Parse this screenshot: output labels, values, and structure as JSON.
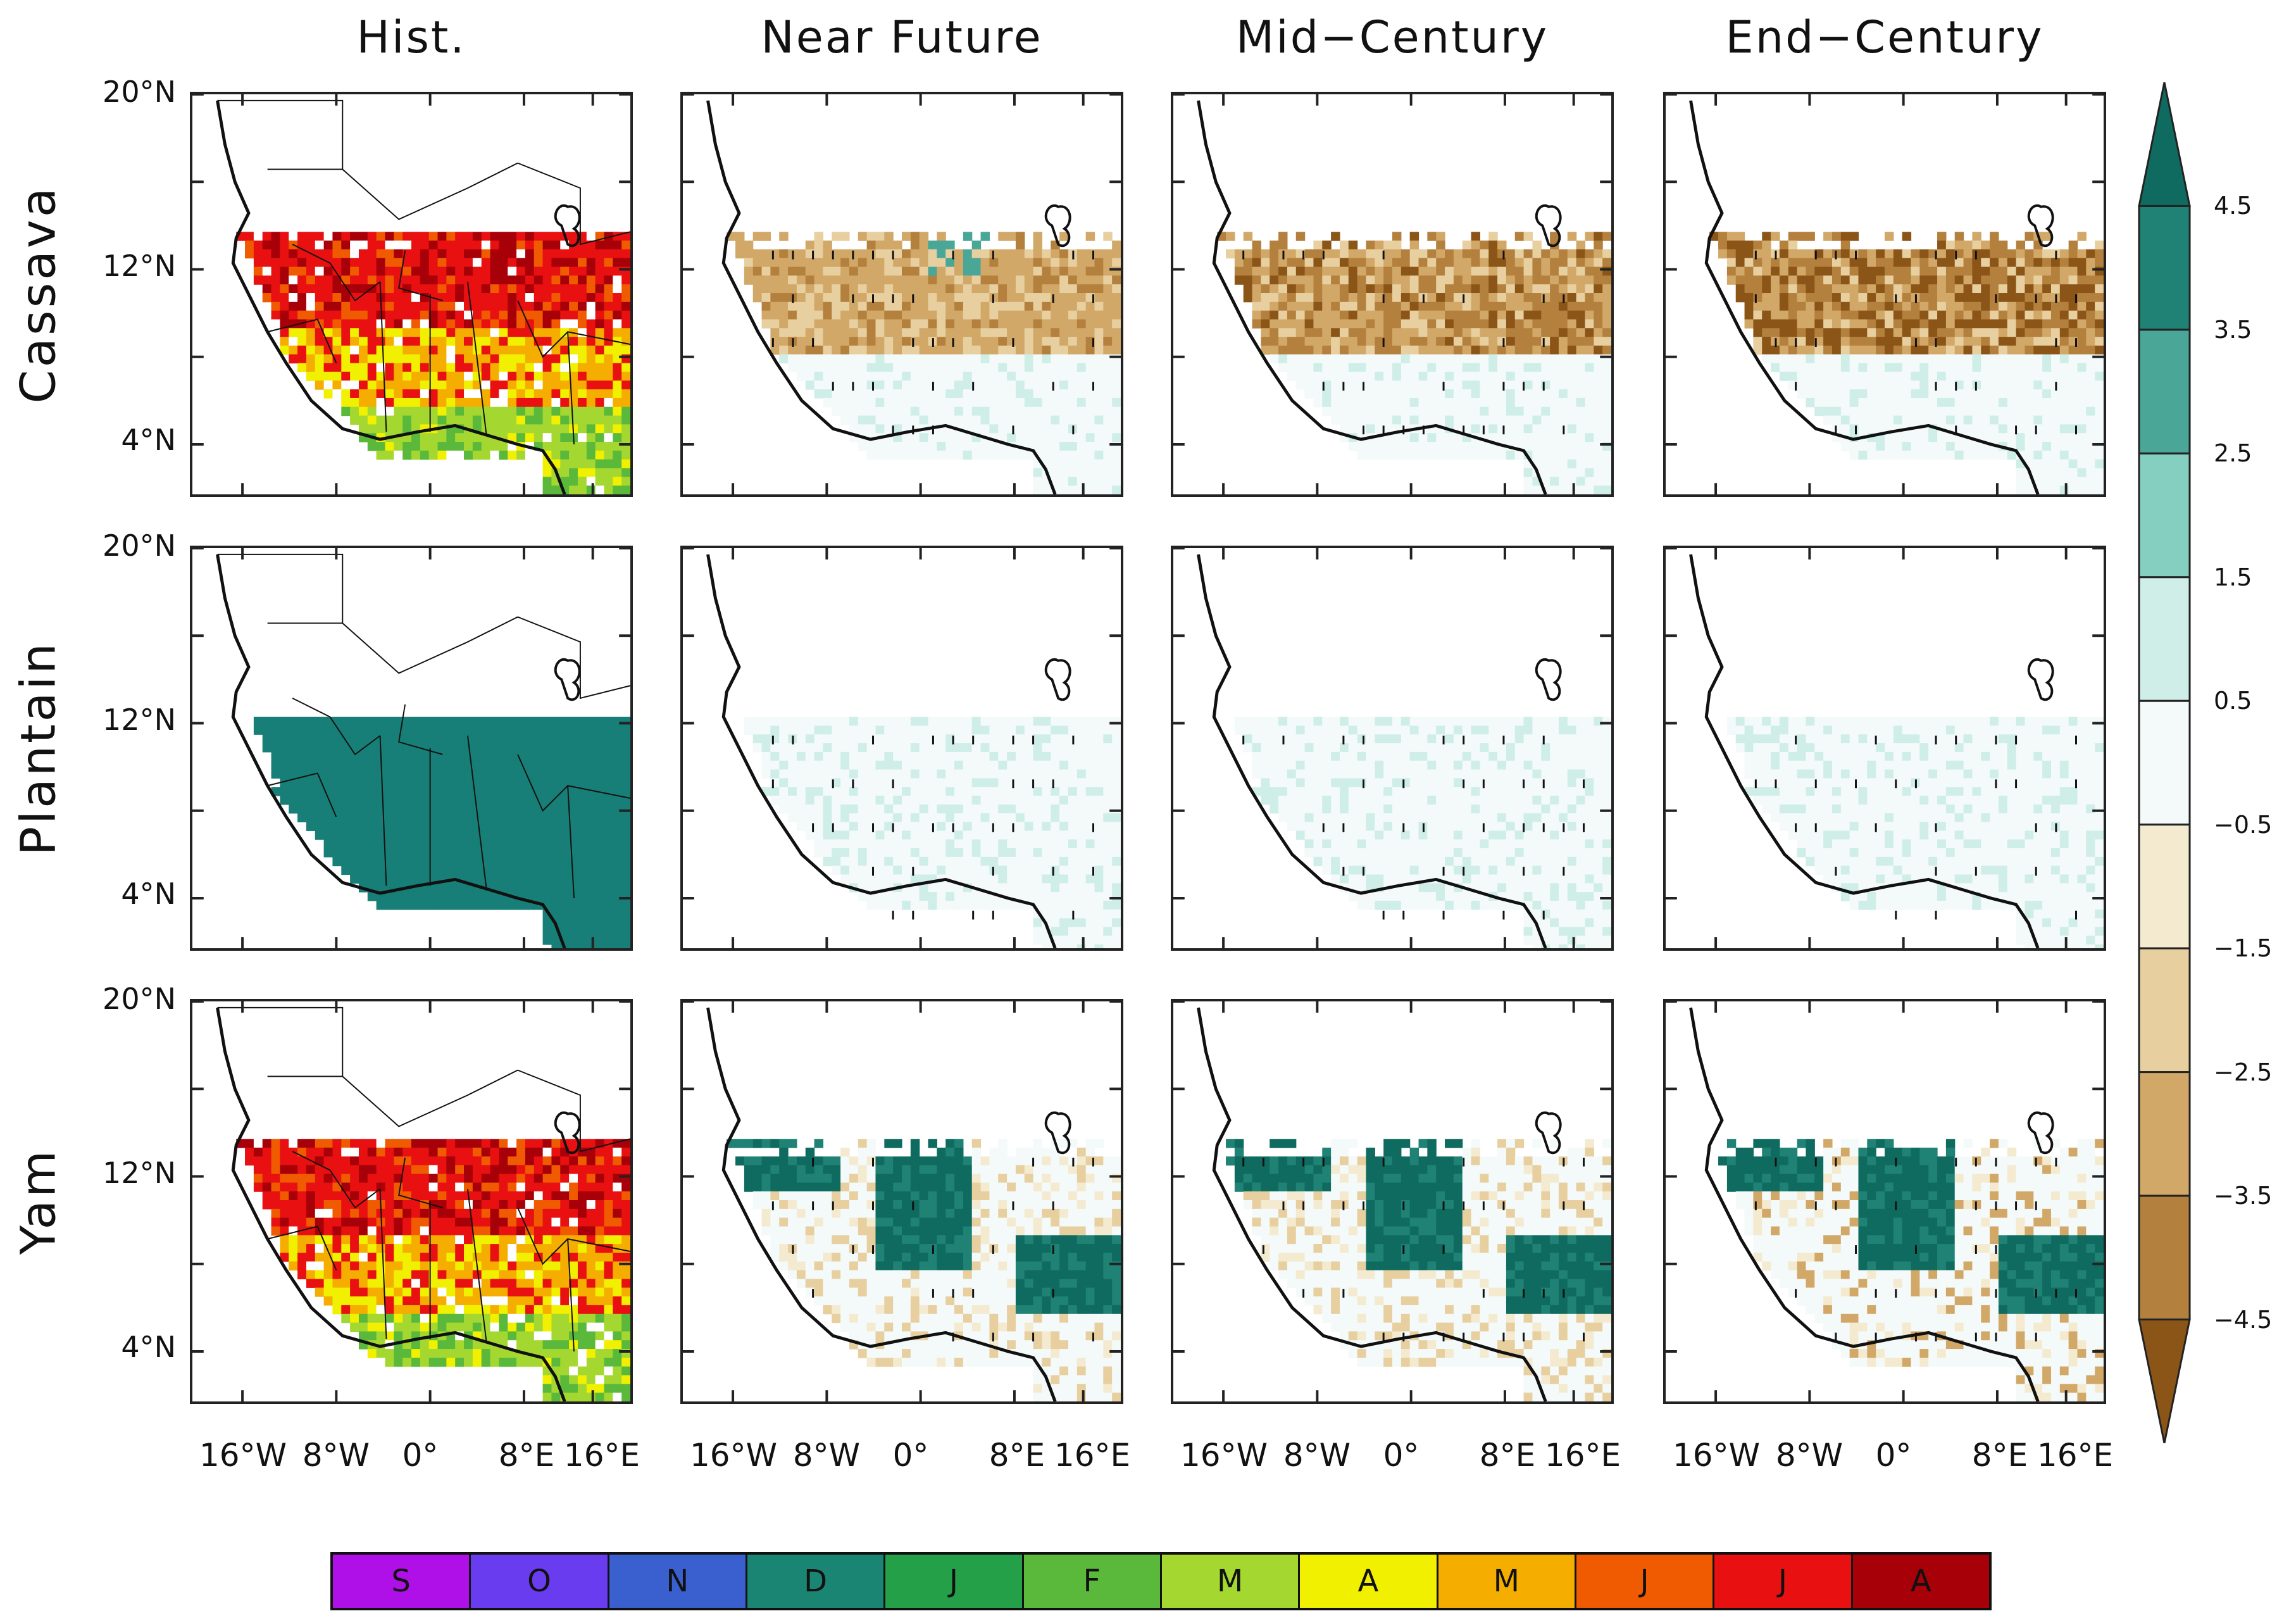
{
  "columns": [
    "Hist.",
    "Near Future",
    "Mid−Century",
    "End−Century"
  ],
  "rows": [
    "Cassava",
    "Plantain",
    "Yam"
  ],
  "lat_ticks": [
    "20°N",
    "12°N",
    "4°N"
  ],
  "lon_ticks": [
    "16°W",
    "8°W",
    "0°",
    "8°E",
    "16°E"
  ],
  "colorbar": {
    "labels": [
      "4.5",
      "3.5",
      "2.5",
      "1.5",
      "0.5",
      "−0.5",
      "−1.5",
      "−2.5",
      "−3.5",
      "−4.5"
    ],
    "colors": [
      "#0f6b5f",
      "#1f8275",
      "#4aa797",
      "#85cfc1",
      "#cfeee8",
      "#f3faf9",
      "#f4ead0",
      "#e7cf9f",
      "#d2a868",
      "#b4803d",
      "#8b5518"
    ]
  },
  "months": {
    "labels": [
      "S",
      "O",
      "N",
      "D",
      "J",
      "F",
      "M",
      "A",
      "M",
      "J",
      "J",
      "A"
    ],
    "colors": [
      "#b010e8",
      "#6a3cf0",
      "#3a5fcf",
      "#1b8573",
      "#24a049",
      "#5ab93b",
      "#a4d830",
      "#f0f000",
      "#f5ae00",
      "#f05a00",
      "#e81010",
      "#a80008"
    ]
  }
}
